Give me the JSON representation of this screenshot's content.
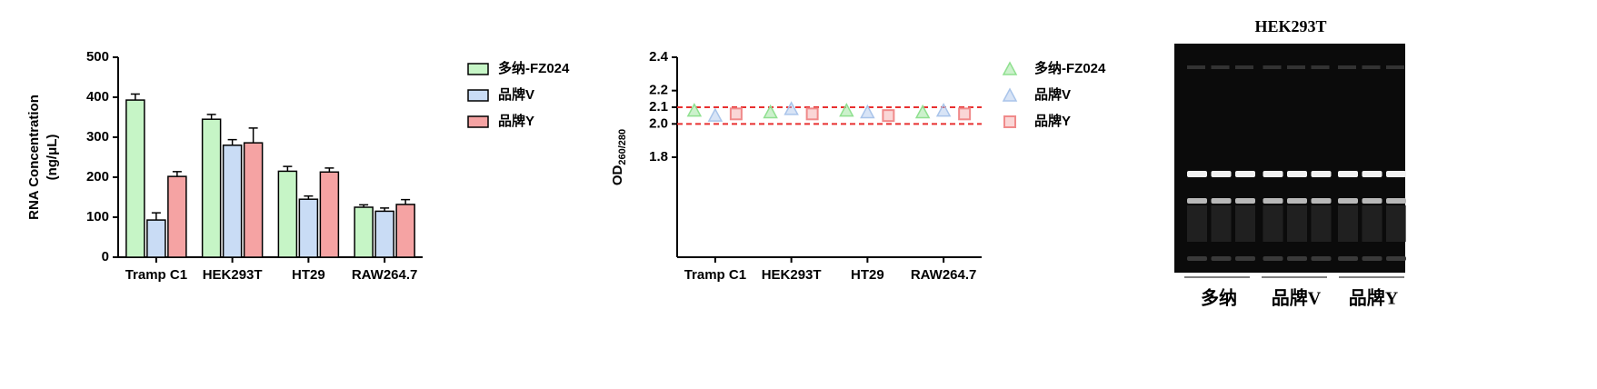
{
  "chart_data": [
    {
      "type": "bar",
      "ylabel": [
        "RNA Concentration",
        "(ng/μL)"
      ],
      "categories": [
        "Tramp C1",
        "HEK293T",
        "HT29",
        "RAW264.7"
      ],
      "series": [
        {
          "name": "多纳-FZ024",
          "color": "#c6f5c6",
          "values": [
            393,
            345,
            215,
            125
          ],
          "errors": [
            15,
            12,
            12,
            6
          ]
        },
        {
          "name": "品牌V",
          "color": "#c9dcf5",
          "values": [
            93,
            280,
            145,
            115
          ],
          "errors": [
            18,
            14,
            8,
            8
          ]
        },
        {
          "name": "品牌Y",
          "color": "#f5a3a3",
          "values": [
            202,
            286,
            213,
            132
          ],
          "errors": [
            12,
            37,
            10,
            12
          ]
        }
      ],
      "ylim": [
        0,
        500
      ],
      "yticks": [
        0,
        100,
        200,
        300,
        400,
        500
      ]
    },
    {
      "type": "scatter",
      "ylabel": "OD",
      "ylabel_sub": "260/280",
      "categories": [
        "Tramp C1",
        "HEK293T",
        "HT29",
        "RAW264.7"
      ],
      "series": [
        {
          "name": "多纳-FZ024",
          "color": "#8fe08f",
          "marker": "triangle",
          "values": [
            2.08,
            2.07,
            2.08,
            2.07
          ]
        },
        {
          "name": "品牌V",
          "color": "#a9c4ea",
          "marker": "triangle",
          "values": [
            2.05,
            2.09,
            2.07,
            2.08
          ]
        },
        {
          "name": "品牌Y",
          "color": "#f08a8a",
          "marker": "square",
          "values": [
            2.06,
            2.06,
            2.05,
            2.06
          ]
        }
      ],
      "reference_lines": [
        2.1,
        2.0
      ],
      "reference_color": "#e83030",
      "ylim": [
        1.2,
        2.4
      ],
      "yticks": [
        {
          "value": 1.8,
          "label": "1.8"
        },
        {
          "value": 2,
          "label": "2.0"
        },
        2.1,
        2.2,
        2.4
      ]
    }
  ],
  "gel_image": {
    "title": "HEK293T",
    "lanes": [
      "多纳",
      "品牌V",
      "品牌Y"
    ]
  }
}
